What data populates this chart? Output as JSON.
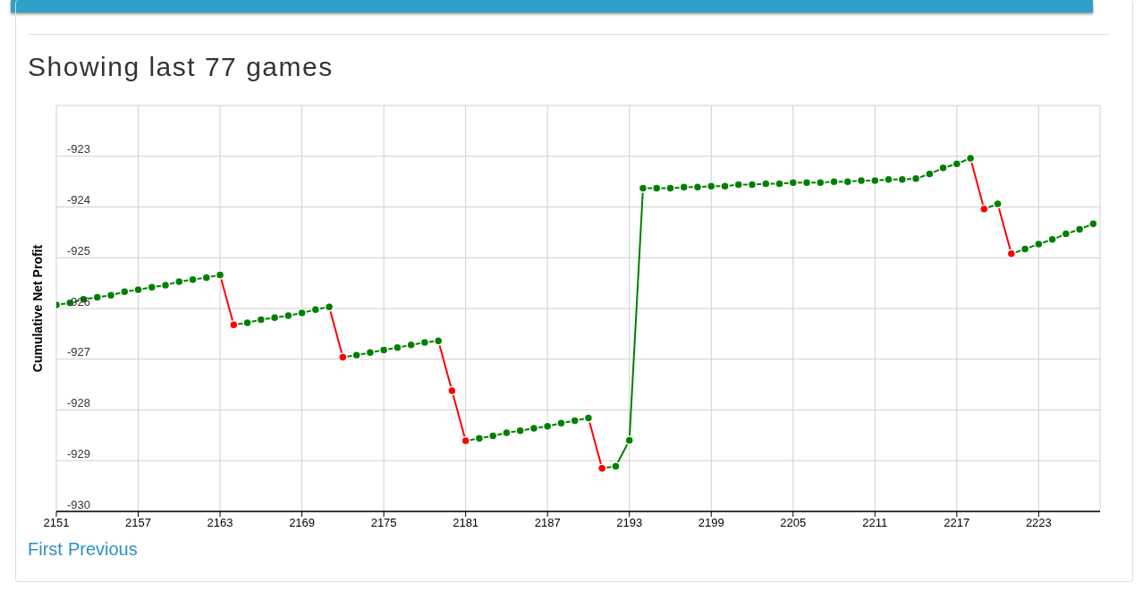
{
  "chart_data": {
    "type": "line",
    "title": "Showing last 77 games",
    "ylabel": "Cumulative Net Profit",
    "annotations": [
      "First",
      "Previous"
    ],
    "x": [
      2151,
      2152,
      2153,
      2154,
      2155,
      2156,
      2157,
      2158,
      2159,
      2160,
      2161,
      2162,
      2163,
      2164,
      2165,
      2166,
      2167,
      2168,
      2169,
      2170,
      2171,
      2172,
      2173,
      2174,
      2175,
      2176,
      2177,
      2178,
      2179,
      2180,
      2181,
      2182,
      2183,
      2184,
      2185,
      2186,
      2187,
      2188,
      2189,
      2190,
      2191,
      2192,
      2193,
      2194,
      2195,
      2196,
      2197,
      2198,
      2199,
      2200,
      2201,
      2202,
      2203,
      2204,
      2205,
      2206,
      2207,
      2208,
      2209,
      2210,
      2211,
      2212,
      2213,
      2214,
      2215,
      2216,
      2217,
      2218,
      2219,
      2220,
      2221,
      2222,
      2223,
      2224,
      2225,
      2226,
      2227
    ],
    "values": [
      -925.93,
      -925.89,
      -925.82,
      -925.78,
      -925.74,
      -925.67,
      -925.63,
      -925.58,
      -925.54,
      -925.47,
      -925.43,
      -925.39,
      -925.34,
      -926.32,
      -926.28,
      -926.22,
      -926.18,
      -926.14,
      -926.09,
      -926.02,
      -925.97,
      -926.96,
      -926.92,
      -926.87,
      -926.82,
      -926.77,
      -926.72,
      -926.67,
      -926.64,
      -927.62,
      -928.61,
      -928.56,
      -928.51,
      -928.45,
      -928.41,
      -928.36,
      -928.32,
      -928.26,
      -928.21,
      -928.16,
      -929.15,
      -929.11,
      -928.6,
      -923.63,
      -923.63,
      -923.63,
      -923.61,
      -923.61,
      -923.59,
      -923.59,
      -923.56,
      -923.56,
      -923.54,
      -923.54,
      -923.52,
      -923.52,
      -923.52,
      -923.5,
      -923.5,
      -923.48,
      -923.48,
      -923.46,
      -923.46,
      -923.44,
      -923.35,
      -923.23,
      -923.15,
      -923.04,
      -924.04,
      -923.94,
      -924.92,
      -924.83,
      -924.73,
      -924.64,
      -924.53,
      -924.44,
      -924.33
    ],
    "colors": [
      "#008000",
      "#008000",
      "#008000",
      "#008000",
      "#008000",
      "#008000",
      "#008000",
      "#008000",
      "#008000",
      "#008000",
      "#008000",
      "#008000",
      "#008000",
      "#ff0000",
      "#008000",
      "#008000",
      "#008000",
      "#008000",
      "#008000",
      "#008000",
      "#008000",
      "#ff0000",
      "#008000",
      "#008000",
      "#008000",
      "#008000",
      "#008000",
      "#008000",
      "#008000",
      "#ff0000",
      "#ff0000",
      "#008000",
      "#008000",
      "#008000",
      "#008000",
      "#008000",
      "#008000",
      "#008000",
      "#008000",
      "#008000",
      "#ff0000",
      "#008000",
      "#008000",
      "#008000",
      "#008000",
      "#008000",
      "#008000",
      "#008000",
      "#008000",
      "#008000",
      "#008000",
      "#008000",
      "#008000",
      "#008000",
      "#008000",
      "#008000",
      "#008000",
      "#008000",
      "#008000",
      "#008000",
      "#008000",
      "#008000",
      "#008000",
      "#008000",
      "#008000",
      "#008000",
      "#008000",
      "#008000",
      "#ff0000",
      "#008000",
      "#ff0000",
      "#008000",
      "#008000",
      "#008000",
      "#008000",
      "#008000",
      "#008000"
    ],
    "xlim": [
      2151,
      2227.5
    ],
    "xticks": [
      2151,
      2157,
      2163,
      2169,
      2175,
      2181,
      2187,
      2193,
      2199,
      2205,
      2211,
      2217,
      2223
    ],
    "ylim": [
      -930,
      -922
    ],
    "yticks": [
      -930,
      -929,
      -928,
      -927,
      -926,
      -925,
      -924,
      -923
    ],
    "grid": true,
    "marker": "circle"
  }
}
